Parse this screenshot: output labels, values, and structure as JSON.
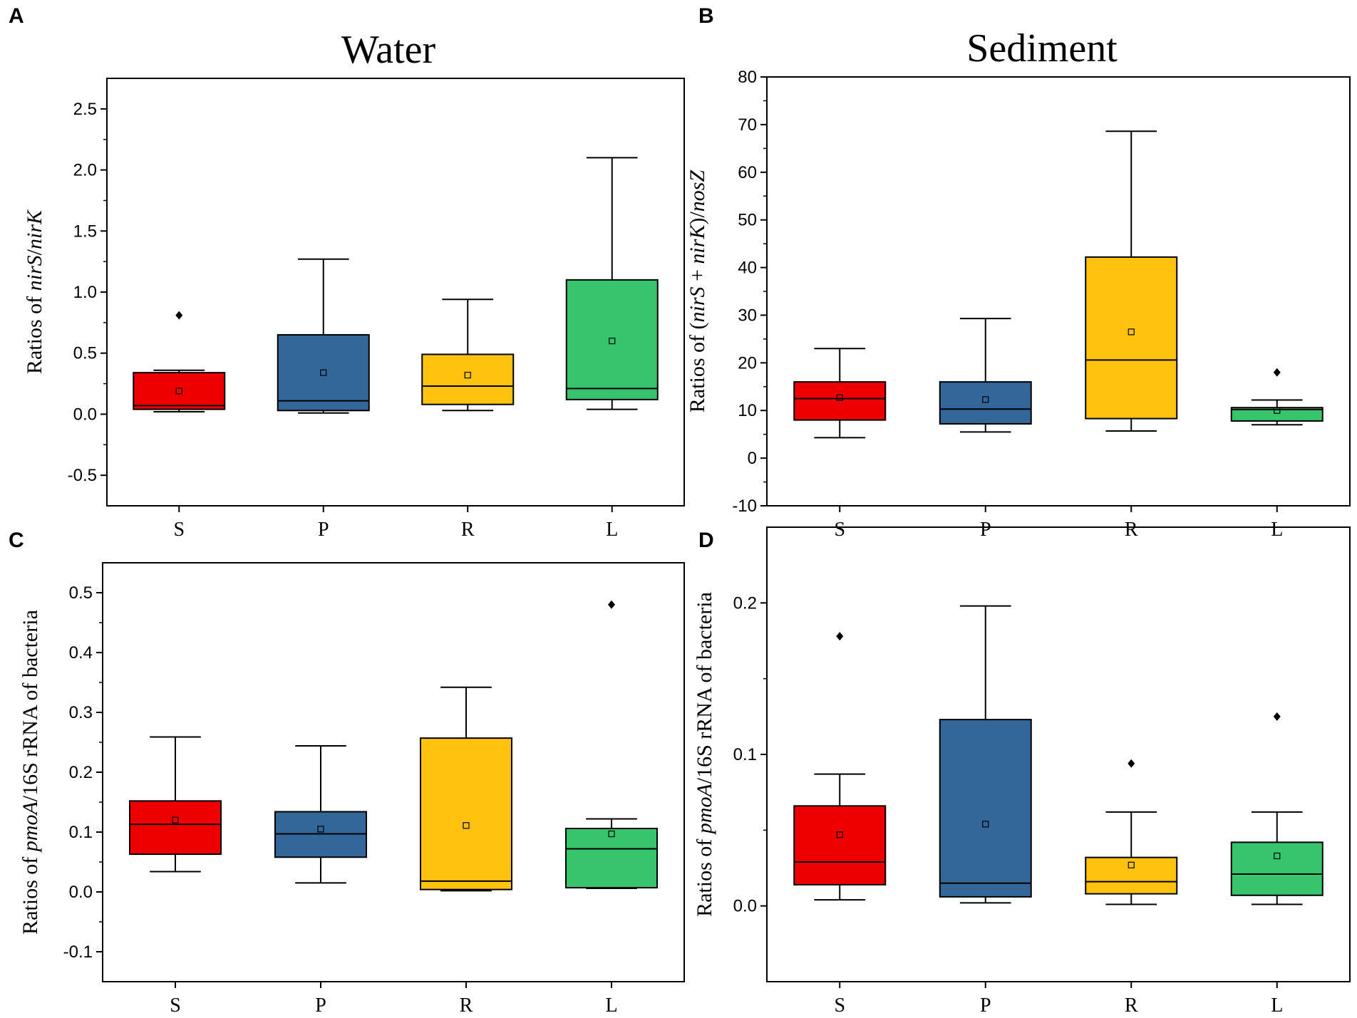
{
  "chart_data": [
    {
      "id": "A",
      "panel_label": "A",
      "type": "box",
      "title": "Water",
      "ylabel_parts": [
        {
          "text": "Ratios of ",
          "italic": false
        },
        {
          "text": "nirS",
          "italic": true
        },
        {
          "text": "/",
          "italic": false
        },
        {
          "text": "nirK",
          "italic": true
        }
      ],
      "ylim": [
        -0.75,
        2.75
      ],
      "ticks": [
        -0.5,
        0.0,
        0.5,
        1.0,
        1.5,
        2.0,
        2.5
      ],
      "tick_labels": [
        "-0.5",
        "0.0",
        "0.5",
        "1.0",
        "1.5",
        "2.0",
        "2.5"
      ],
      "categories": [
        "S",
        "P",
        "R",
        "L"
      ],
      "colors": [
        "#ee0000",
        "#336699",
        "#ffc30f",
        "#38c46c"
      ],
      "boxes": [
        {
          "q1": 0.04,
          "median": 0.07,
          "q3": 0.34,
          "mean": 0.19,
          "whisker_low": 0.02,
          "whisker_high": 0.36,
          "outliers": [
            0.81
          ]
        },
        {
          "q1": 0.03,
          "median": 0.11,
          "q3": 0.65,
          "mean": 0.34,
          "whisker_low": 0.01,
          "whisker_high": 1.27,
          "outliers": []
        },
        {
          "q1": 0.08,
          "median": 0.23,
          "q3": 0.49,
          "mean": 0.32,
          "whisker_low": 0.03,
          "whisker_high": 0.94,
          "outliers": []
        },
        {
          "q1": 0.12,
          "median": 0.21,
          "q3": 1.1,
          "mean": 0.6,
          "whisker_low": 0.04,
          "whisker_high": 2.1,
          "outliers": []
        }
      ]
    },
    {
      "id": "B",
      "panel_label": "B",
      "type": "box",
      "title": "Sediment",
      "ylabel_parts": [
        {
          "text": "Ratios of (",
          "italic": false
        },
        {
          "text": "nirS",
          "italic": true
        },
        {
          "text": " + ",
          "italic": false
        },
        {
          "text": "nirK",
          "italic": true
        },
        {
          "text": ")/",
          "italic": false
        },
        {
          "text": "nosZ",
          "italic": true
        }
      ],
      "ylim": [
        -10,
        80
      ],
      "ticks": [
        -10,
        0,
        10,
        20,
        30,
        40,
        50,
        60,
        70,
        80
      ],
      "tick_labels": [
        "-10",
        "0",
        "10",
        "20",
        "30",
        "40",
        "50",
        "60",
        "70",
        "80"
      ],
      "categories": [
        "S",
        "P",
        "R",
        "L"
      ],
      "colors": [
        "#ee0000",
        "#336699",
        "#ffc30f",
        "#38c46c"
      ],
      "boxes": [
        {
          "q1": 8.0,
          "median": 12.5,
          "q3": 16.0,
          "mean": 12.7,
          "whisker_low": 4.3,
          "whisker_high": 23.0,
          "outliers": []
        },
        {
          "q1": 7.2,
          "median": 10.3,
          "q3": 16.0,
          "mean": 12.3,
          "whisker_low": 5.5,
          "whisker_high": 29.3,
          "outliers": []
        },
        {
          "q1": 8.3,
          "median": 20.6,
          "q3": 42.2,
          "mean": 26.5,
          "whisker_low": 5.7,
          "whisker_high": 68.6,
          "outliers": []
        },
        {
          "q1": 7.8,
          "median": 10.2,
          "q3": 10.6,
          "mean": 10.0,
          "whisker_low": 7.0,
          "whisker_high": 12.2,
          "outliers": [
            18.0
          ]
        }
      ]
    },
    {
      "id": "C",
      "panel_label": "C",
      "type": "box",
      "title": "",
      "ylabel_parts": [
        {
          "text": "Ratios of ",
          "italic": false
        },
        {
          "text": "pmoA",
          "italic": true
        },
        {
          "text": "/16S rRNA of bacteria",
          "italic": false
        }
      ],
      "ylim": [
        -0.15,
        0.55
      ],
      "ticks": [
        -0.1,
        0.0,
        0.1,
        0.2,
        0.3,
        0.4,
        0.5
      ],
      "tick_labels": [
        "-0.1",
        "0.0",
        "0.1",
        "0.2",
        "0.3",
        "0.4",
        "0.5"
      ],
      "categories": [
        "S",
        "P",
        "R",
        "L"
      ],
      "colors": [
        "#ee0000",
        "#336699",
        "#ffc30f",
        "#38c46c"
      ],
      "boxes": [
        {
          "q1": 0.063,
          "median": 0.113,
          "q3": 0.152,
          "mean": 0.12,
          "whisker_low": 0.034,
          "whisker_high": 0.259,
          "outliers": []
        },
        {
          "q1": 0.058,
          "median": 0.097,
          "q3": 0.134,
          "mean": 0.105,
          "whisker_low": 0.015,
          "whisker_high": 0.244,
          "outliers": []
        },
        {
          "q1": 0.004,
          "median": 0.018,
          "q3": 0.257,
          "mean": 0.111,
          "whisker_low": 0.002,
          "whisker_high": 0.342,
          "outliers": []
        },
        {
          "q1": 0.007,
          "median": 0.072,
          "q3": 0.106,
          "mean": 0.097,
          "whisker_low": 0.006,
          "whisker_high": 0.122,
          "outliers": [
            0.48
          ]
        }
      ]
    },
    {
      "id": "D",
      "panel_label": "D",
      "type": "box",
      "title": "",
      "ylabel_parts": [
        {
          "text": "Ratios of  ",
          "italic": false
        },
        {
          "text": "pmoA",
          "italic": true
        },
        {
          "text": "/16S rRNA of bacteria",
          "italic": false
        }
      ],
      "ylim": [
        -0.05,
        0.25
      ],
      "ticks": [
        0.0,
        0.1,
        0.2
      ],
      "tick_labels": [
        "0.0",
        "0.1",
        "0.2"
      ],
      "categories": [
        "S",
        "P",
        "R",
        "L"
      ],
      "colors": [
        "#ee0000",
        "#336699",
        "#ffc30f",
        "#38c46c"
      ],
      "boxes": [
        {
          "q1": 0.014,
          "median": 0.029,
          "q3": 0.066,
          "mean": 0.047,
          "whisker_low": 0.004,
          "whisker_high": 0.087,
          "outliers": [
            0.178
          ]
        },
        {
          "q1": 0.006,
          "median": 0.015,
          "q3": 0.123,
          "mean": 0.054,
          "whisker_low": 0.002,
          "whisker_high": 0.198,
          "outliers": []
        },
        {
          "q1": 0.008,
          "median": 0.016,
          "q3": 0.032,
          "mean": 0.027,
          "whisker_low": 0.001,
          "whisker_high": 0.062,
          "outliers": [
            0.094
          ]
        },
        {
          "q1": 0.007,
          "median": 0.021,
          "q3": 0.042,
          "mean": 0.033,
          "whisker_low": 0.001,
          "whisker_high": 0.062,
          "outliers": [
            0.125
          ]
        }
      ]
    }
  ]
}
